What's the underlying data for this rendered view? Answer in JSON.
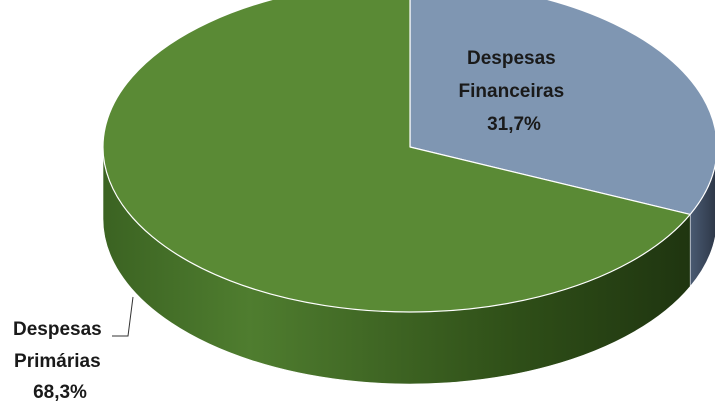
{
  "chart_data": {
    "type": "pie",
    "style": "3d",
    "title": "",
    "slices": [
      {
        "name_line1": "Despesas",
        "name_line2": "Financeiras",
        "value": 31.7,
        "value_label": "31,7%",
        "color": "#7F96B2",
        "side_color": "#3F4F66"
      },
      {
        "name_line1": "Despesas",
        "name_line2": "Primárias",
        "value": 68.3,
        "value_label": "68,3%",
        "color": "#5A8A35",
        "side_color": "#2E4E17"
      }
    ],
    "legend": "none",
    "data_labels": "on-slice / leader-line"
  }
}
